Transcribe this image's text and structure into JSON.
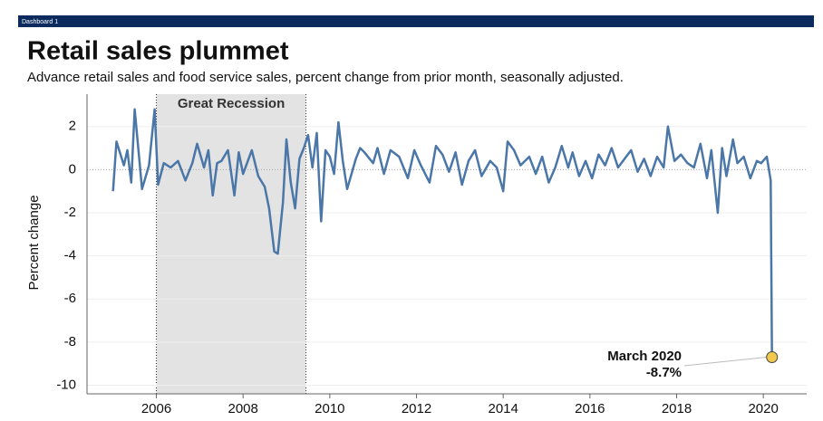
{
  "header": {
    "label": "Dashboard 1"
  },
  "chart_data": {
    "type": "line",
    "title": "Retail sales plummet",
    "subtitle": "Advance retail sales and food service sales, percent change from prior month, seasonally adjusted.",
    "y_label": "Percent change",
    "xlim": [
      2004.4,
      2021
    ],
    "ylim": [
      -10.4,
      3.5
    ],
    "xticks": [
      2006,
      2008,
      2010,
      2012,
      2014,
      2016,
      2018,
      2020
    ],
    "yticks": [
      2,
      0,
      -2,
      -4,
      -6,
      -8,
      -10
    ],
    "grid": true,
    "recession": {
      "label": "Great Recession",
      "start": 2006,
      "end": 2009.45
    },
    "x": [
      2005.0,
      2005.08,
      2005.25,
      2005.33,
      2005.42,
      2005.5,
      2005.67,
      2005.83,
      2005.96,
      2006.04,
      2006.17,
      2006.33,
      2006.5,
      2006.67,
      2006.83,
      2006.94,
      2007.1,
      2007.2,
      2007.3,
      2007.4,
      2007.5,
      2007.65,
      2007.8,
      2007.9,
      2008.0,
      2008.2,
      2008.35,
      2008.5,
      2008.6,
      2008.72,
      2008.8,
      2008.92,
      2009.0,
      2009.1,
      2009.2,
      2009.3,
      2009.4,
      2009.5,
      2009.6,
      2009.7,
      2009.8,
      2009.9,
      2010.0,
      2010.1,
      2010.2,
      2010.3,
      2010.4,
      2010.6,
      2010.7,
      2010.8,
      2011.0,
      2011.1,
      2011.25,
      2011.4,
      2011.6,
      2011.8,
      2011.95,
      2012.1,
      2012.3,
      2012.45,
      2012.6,
      2012.75,
      2012.9,
      2013.05,
      2013.2,
      2013.35,
      2013.5,
      2013.7,
      2013.85,
      2014.0,
      2014.1,
      2014.25,
      2014.4,
      2014.6,
      2014.75,
      2014.9,
      2015.05,
      2015.2,
      2015.35,
      2015.5,
      2015.6,
      2015.75,
      2015.9,
      2016.05,
      2016.2,
      2016.35,
      2016.5,
      2016.65,
      2016.8,
      2016.95,
      2017.1,
      2017.25,
      2017.4,
      2017.55,
      2017.7,
      2017.8,
      2017.95,
      2018.1,
      2018.25,
      2018.4,
      2018.55,
      2018.7,
      2018.8,
      2018.95,
      2019.05,
      2019.15,
      2019.3,
      2019.4,
      2019.55,
      2019.7,
      2019.85,
      2019.95,
      2020.08,
      2020.17,
      2020.2
    ],
    "series": [
      {
        "color": "#4a76a8",
        "values": [
          -1.0,
          1.3,
          0.2,
          0.9,
          -0.6,
          2.8,
          -0.9,
          0.2,
          2.8,
          -0.7,
          0.3,
          0.1,
          0.4,
          -0.5,
          0.3,
          1.2,
          0.1,
          0.9,
          -1.2,
          0.3,
          0.4,
          0.9,
          -1.2,
          0.8,
          -0.2,
          0.9,
          -0.3,
          -0.8,
          -1.8,
          -3.8,
          -3.9,
          -1.5,
          1.4,
          -0.6,
          -1.8,
          0.5,
          1.0,
          1.6,
          0.1,
          1.7,
          -2.4,
          0.9,
          0.6,
          -0.2,
          2.2,
          0.4,
          -0.9,
          0.5,
          1.0,
          0.8,
          0.3,
          1.0,
          -0.2,
          0.9,
          0.6,
          -0.4,
          0.9,
          0.2,
          -0.6,
          1.1,
          0.7,
          -0.1,
          0.8,
          -0.7,
          0.4,
          0.9,
          -0.3,
          0.4,
          0.1,
          -1.0,
          1.3,
          0.9,
          0.2,
          0.6,
          -0.2,
          0.6,
          -0.6,
          0.1,
          1.1,
          0.1,
          0.8,
          -0.3,
          0.4,
          -0.4,
          0.7,
          0.2,
          1.0,
          0.1,
          0.5,
          0.9,
          -0.1,
          0.5,
          -0.3,
          0.6,
          0.1,
          2.0,
          0.4,
          0.7,
          0.3,
          0.1,
          1.2,
          -0.4,
          0.9,
          -2.0,
          1.0,
          -0.3,
          1.4,
          0.3,
          0.6,
          -0.4,
          0.4,
          0.3,
          0.6,
          -0.5,
          -8.7
        ]
      }
    ],
    "highlight": {
      "x": 2020.2,
      "value": -8.7,
      "label": "March 2020",
      "value_label": "-8.7%"
    }
  }
}
